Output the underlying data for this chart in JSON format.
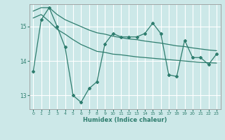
{
  "title": "",
  "xlabel": "Humidex (Indice chaleur)",
  "background_color": "#cce8e8",
  "grid_color": "#ffffff",
  "line_color": "#2e7d6e",
  "xlim": [
    -0.5,
    23.5
  ],
  "ylim": [
    12.6,
    15.65
  ],
  "yticks": [
    13,
    14,
    15
  ],
  "xticks": [
    0,
    1,
    2,
    3,
    4,
    5,
    6,
    7,
    8,
    9,
    10,
    11,
    12,
    13,
    14,
    15,
    16,
    17,
    18,
    19,
    20,
    21,
    22,
    23
  ],
  "main_y": [
    13.7,
    15.2,
    15.55,
    15.0,
    14.4,
    13.0,
    12.8,
    13.2,
    13.4,
    14.5,
    14.8,
    14.7,
    14.7,
    14.7,
    14.8,
    15.1,
    14.8,
    13.6,
    13.55,
    14.6,
    14.1,
    14.1,
    13.9,
    14.2
  ],
  "upper_y": [
    15.45,
    15.55,
    15.55,
    15.35,
    15.2,
    15.1,
    15.0,
    14.9,
    14.82,
    14.78,
    14.72,
    14.68,
    14.64,
    14.62,
    14.58,
    14.55,
    14.52,
    14.48,
    14.44,
    14.42,
    14.38,
    14.35,
    14.32,
    14.3
  ],
  "lower_y": [
    15.25,
    15.35,
    15.15,
    14.92,
    14.78,
    14.62,
    14.48,
    14.38,
    14.28,
    14.25,
    14.2,
    14.18,
    14.15,
    14.12,
    14.1,
    14.08,
    14.06,
    14.04,
    14.02,
    14.0,
    13.98,
    13.96,
    13.95,
    13.94
  ]
}
